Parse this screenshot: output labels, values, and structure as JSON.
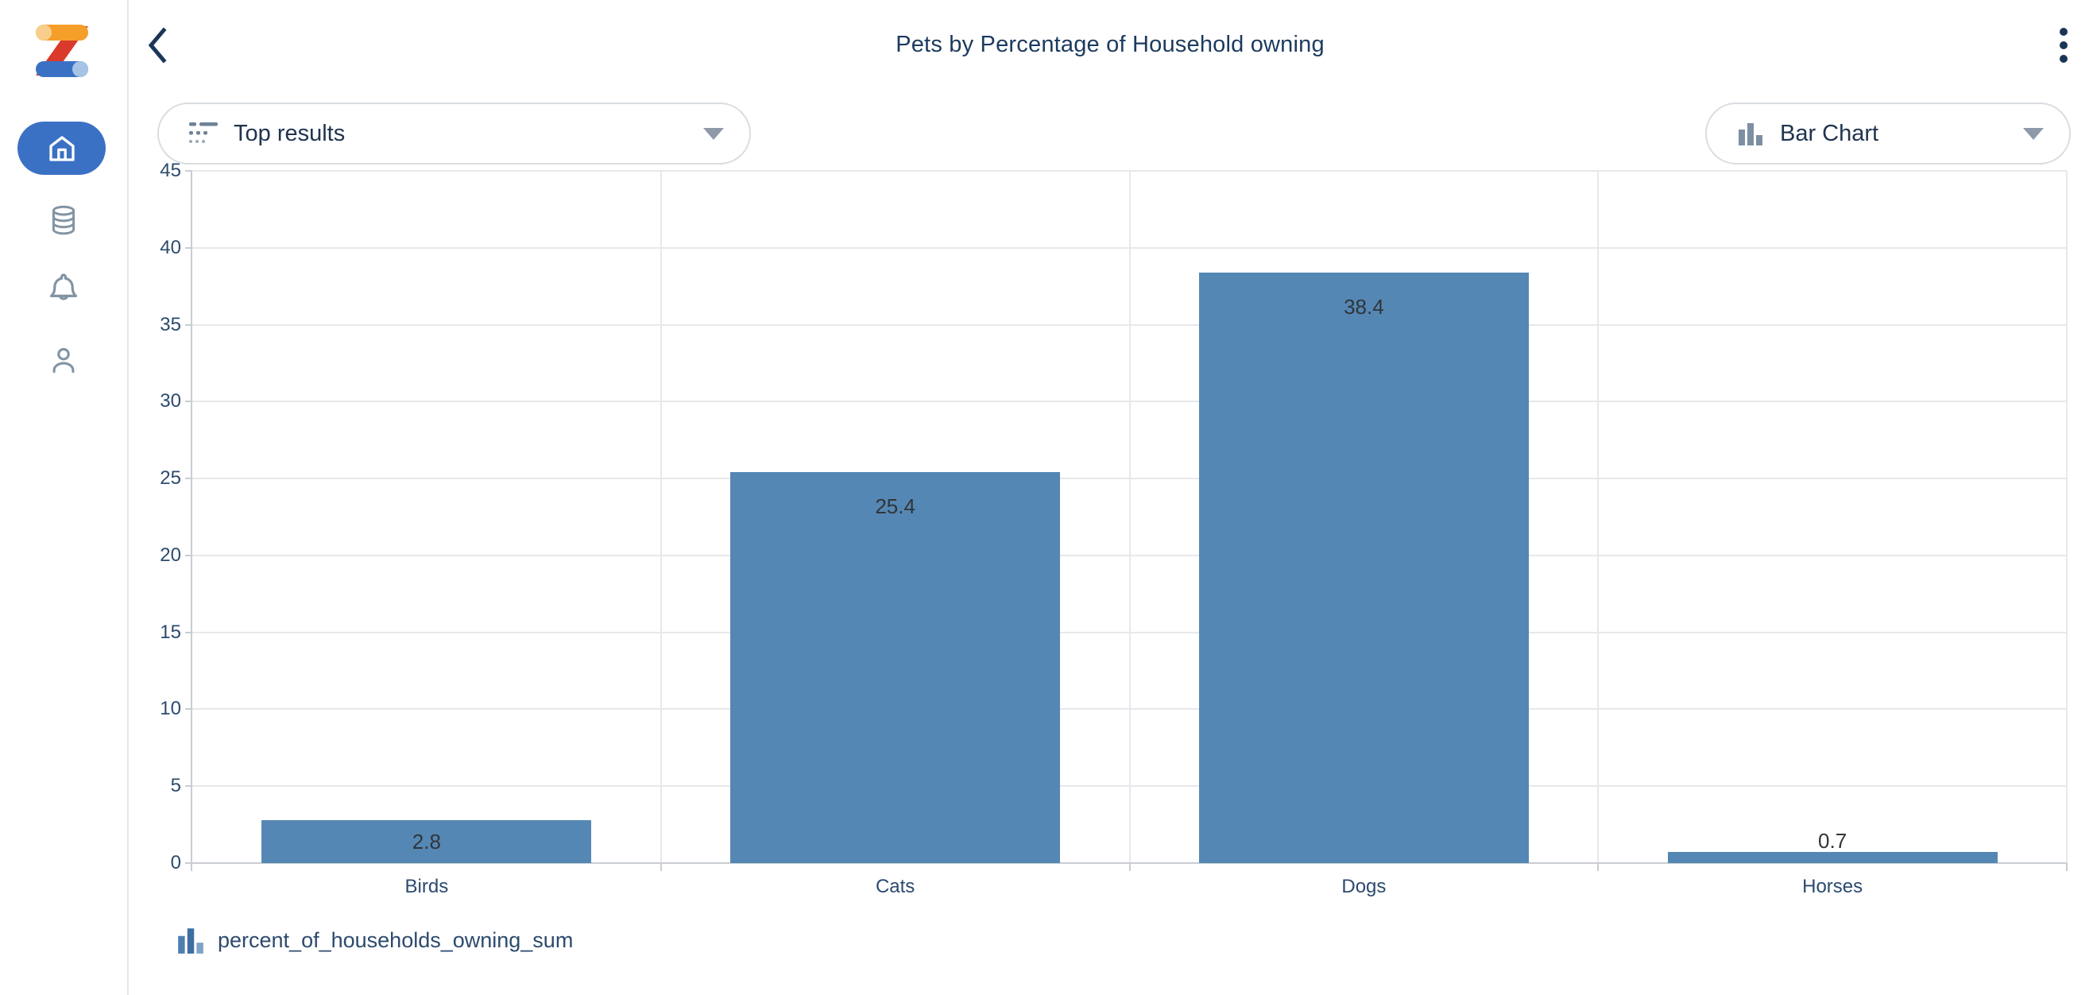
{
  "sidebar": {
    "items": [
      {
        "id": "home",
        "icon": "home-icon",
        "active": true
      },
      {
        "id": "data-sources",
        "icon": "database-icon",
        "active": false
      },
      {
        "id": "notifications",
        "icon": "bell-icon",
        "active": false
      },
      {
        "id": "profile",
        "icon": "person-icon",
        "active": false
      }
    ]
  },
  "header": {
    "title": "Pets by Percentage of Household owning"
  },
  "controls": {
    "top_results_label": "Top results",
    "chart_type_label": "Bar Chart"
  },
  "chart_data": {
    "type": "bar",
    "title": "Pets by Percentage of Household owning",
    "categories": [
      "Birds",
      "Cats",
      "Dogs",
      "Horses"
    ],
    "values": [
      2.8,
      25.4,
      38.4,
      0.7
    ],
    "series": [
      {
        "name": "percent_of_households_owning_sum",
        "values": [
          2.8,
          25.4,
          38.4,
          0.7
        ]
      }
    ],
    "data_labels": [
      "2.8",
      "25.4",
      "38.4",
      "0.7"
    ],
    "xlabel": "",
    "ylabel": "",
    "ylim": [
      0,
      45
    ],
    "yticks": [
      0,
      5,
      10,
      15,
      20,
      25,
      30,
      35,
      40,
      45
    ],
    "grid": true,
    "legend_position": "bottom",
    "bar_color": "#5587B4"
  },
  "legend": {
    "label": "percent_of_households_owning_sum"
  },
  "colors": {
    "accent_blue": "#3B71C4",
    "bar_fill": "#5587B4",
    "navy_text": "#1C3A5F",
    "slate_icon": "#8294A4",
    "pill_border": "#D9DDE2",
    "gridline": "#E6E8EB",
    "axis": "#C9CDD2"
  }
}
